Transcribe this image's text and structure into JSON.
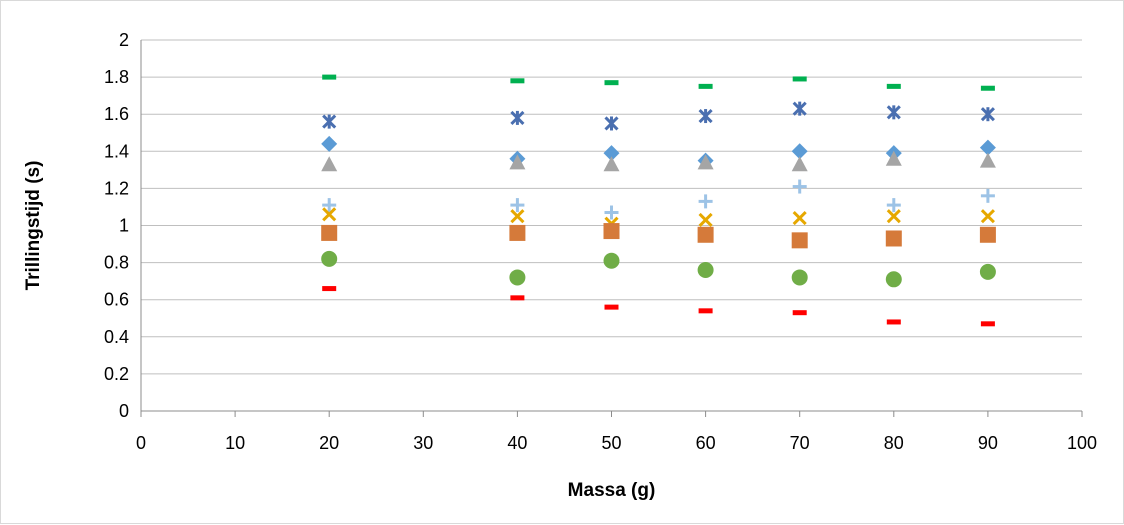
{
  "chart_data": {
    "type": "scatter",
    "title": "",
    "xlabel": "Massa (g)",
    "ylabel": "Trillingstijd (s)",
    "xlim": [
      0,
      100
    ],
    "ylim": [
      0,
      2
    ],
    "x_ticks": [
      "0",
      "10",
      "20",
      "30",
      "40",
      "50",
      "60",
      "70",
      "80",
      "90",
      "100"
    ],
    "y_ticks": [
      "0",
      "0.2",
      "0.4",
      "0.6",
      "0.8",
      "1",
      "1.2",
      "1.4",
      "1.6",
      "1.8",
      "2"
    ],
    "grid": "horizontal",
    "legend": "none",
    "x": [
      20,
      40,
      50,
      60,
      70,
      80,
      90
    ],
    "series": [
      {
        "marker": "dash",
        "color": "#00b050",
        "values": [
          1.8,
          1.78,
          1.77,
          1.75,
          1.79,
          1.75,
          1.74
        ]
      },
      {
        "marker": "star",
        "color": "#4a6fb0",
        "values": [
          1.56,
          1.58,
          1.55,
          1.59,
          1.63,
          1.61,
          1.6
        ]
      },
      {
        "marker": "diamond",
        "color": "#5b9bd5",
        "values": [
          1.44,
          1.36,
          1.39,
          1.35,
          1.4,
          1.39,
          1.42
        ]
      },
      {
        "marker": "triangle",
        "color": "#a5a5a5",
        "values": [
          1.33,
          1.34,
          1.33,
          1.34,
          1.33,
          1.36,
          1.35
        ]
      },
      {
        "marker": "plus",
        "color": "#9dc3e6",
        "values": [
          1.11,
          1.11,
          1.07,
          1.13,
          1.21,
          1.11,
          1.16
        ]
      },
      {
        "marker": "x",
        "color": "#e6a800",
        "values": [
          1.06,
          1.05,
          1.01,
          1.03,
          1.04,
          1.05,
          1.05
        ]
      },
      {
        "marker": "square",
        "color": "#d57a3a",
        "values": [
          0.96,
          0.96,
          0.97,
          0.95,
          0.92,
          0.93,
          0.95
        ]
      },
      {
        "marker": "circle",
        "color": "#70ad47",
        "values": [
          0.82,
          0.72,
          0.81,
          0.76,
          0.72,
          0.71,
          0.75
        ]
      },
      {
        "marker": "dash",
        "color": "#ff0000",
        "values": [
          0.66,
          0.61,
          0.56,
          0.54,
          0.53,
          0.48,
          0.47
        ]
      }
    ]
  }
}
